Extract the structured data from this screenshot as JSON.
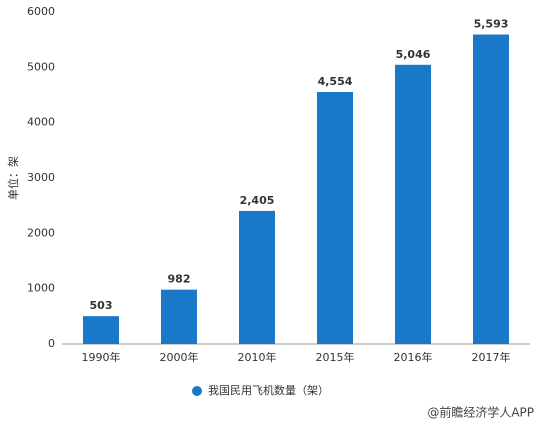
{
  "chart_data": {
    "type": "bar",
    "y_label": "单位：架",
    "categories": [
      "1990年",
      "2000年",
      "2010年",
      "2015年",
      "2016年",
      "2017年"
    ],
    "series": [
      {
        "name": "我国民用飞机数量（架）",
        "color": "#1a78c8",
        "values": [
          503,
          982,
          2405,
          4554,
          5046,
          5593
        ],
        "value_labels": [
          "503",
          "982",
          "2,405",
          "4,554",
          "5,046",
          "5,593"
        ]
      }
    ],
    "ylim": [
      0,
      6000
    ],
    "yticks": [
      0,
      1000,
      2000,
      3000,
      4000,
      5000,
      6000
    ],
    "grid": false,
    "source": "@前瞻经济学人APP"
  }
}
